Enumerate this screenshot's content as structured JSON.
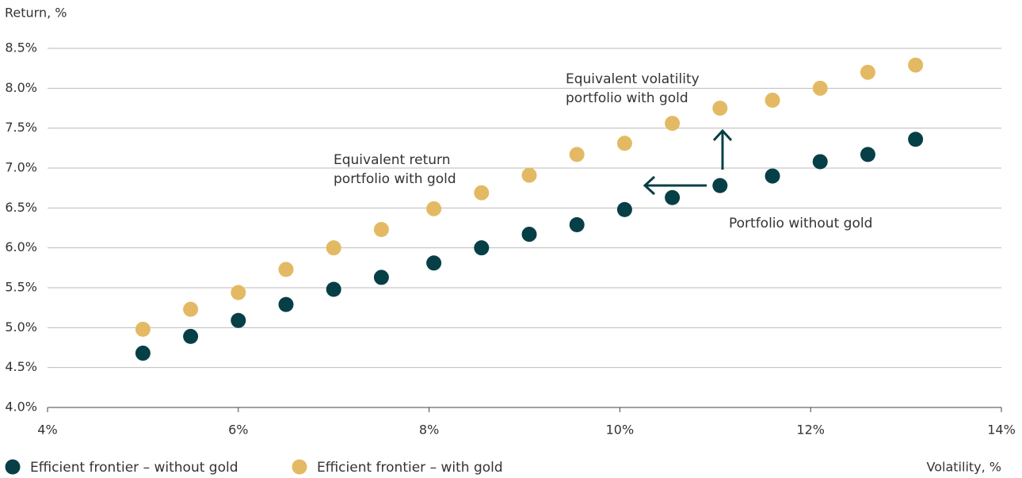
{
  "chart_data": {
    "type": "scatter",
    "y_axis_label": "Return, %",
    "x_axis_label": "Volatility, %",
    "xlim": [
      4,
      14
    ],
    "ylim": [
      4,
      8.5
    ],
    "xticks": [
      {
        "value": 4,
        "label": "4%"
      },
      {
        "value": 6,
        "label": "6%"
      },
      {
        "value": 8,
        "label": "8%"
      },
      {
        "value": 10,
        "label": "10%"
      },
      {
        "value": 12,
        "label": "12%"
      },
      {
        "value": 14,
        "label": "14%"
      }
    ],
    "yticks": [
      {
        "value": 4,
        "label": "4.0%"
      },
      {
        "value": 4.5,
        "label": "4.5%"
      },
      {
        "value": 5,
        "label": "5.0%"
      },
      {
        "value": 5.5,
        "label": "5.5%"
      },
      {
        "value": 6,
        "label": "6.0%"
      },
      {
        "value": 6.5,
        "label": "6.5%"
      },
      {
        "value": 7,
        "label": "7.0%"
      },
      {
        "value": 7.5,
        "label": "7.5%"
      },
      {
        "value": 8,
        "label": "8.0%"
      },
      {
        "value": 8.5,
        "label": "8.5%"
      }
    ],
    "grid": true,
    "series": [
      {
        "name": "Efficient frontier – without gold",
        "color": "#073f47",
        "x": [
          5.0,
          5.5,
          6.0,
          6.5,
          7.0,
          7.5,
          8.05,
          8.55,
          9.05,
          9.55,
          10.05,
          10.55,
          11.05,
          11.6,
          12.1,
          12.6,
          13.1
        ],
        "values": [
          4.68,
          4.89,
          5.09,
          5.29,
          5.48,
          5.63,
          5.81,
          6.0,
          6.17,
          6.29,
          6.48,
          6.63,
          6.78,
          6.9,
          7.08,
          7.17,
          7.36
        ]
      },
      {
        "name": "Efficient frontier – with gold",
        "color": "#e3ba63",
        "x": [
          5.0,
          5.5,
          6.0,
          6.5,
          7.0,
          7.5,
          8.05,
          8.55,
          9.05,
          9.55,
          10.05,
          10.55,
          11.05,
          11.6,
          12.1,
          12.6,
          13.1
        ],
        "values": [
          4.98,
          5.23,
          5.44,
          5.73,
          6.0,
          6.23,
          6.49,
          6.69,
          6.91,
          7.17,
          7.31,
          7.56,
          7.75,
          7.85,
          8.0,
          8.2,
          8.29
        ]
      }
    ],
    "annotations": [
      "Equivalent volatility",
      "portfolio with gold",
      "Equivalent return",
      "portfolio with gold",
      "Portfolio without gold"
    ]
  }
}
